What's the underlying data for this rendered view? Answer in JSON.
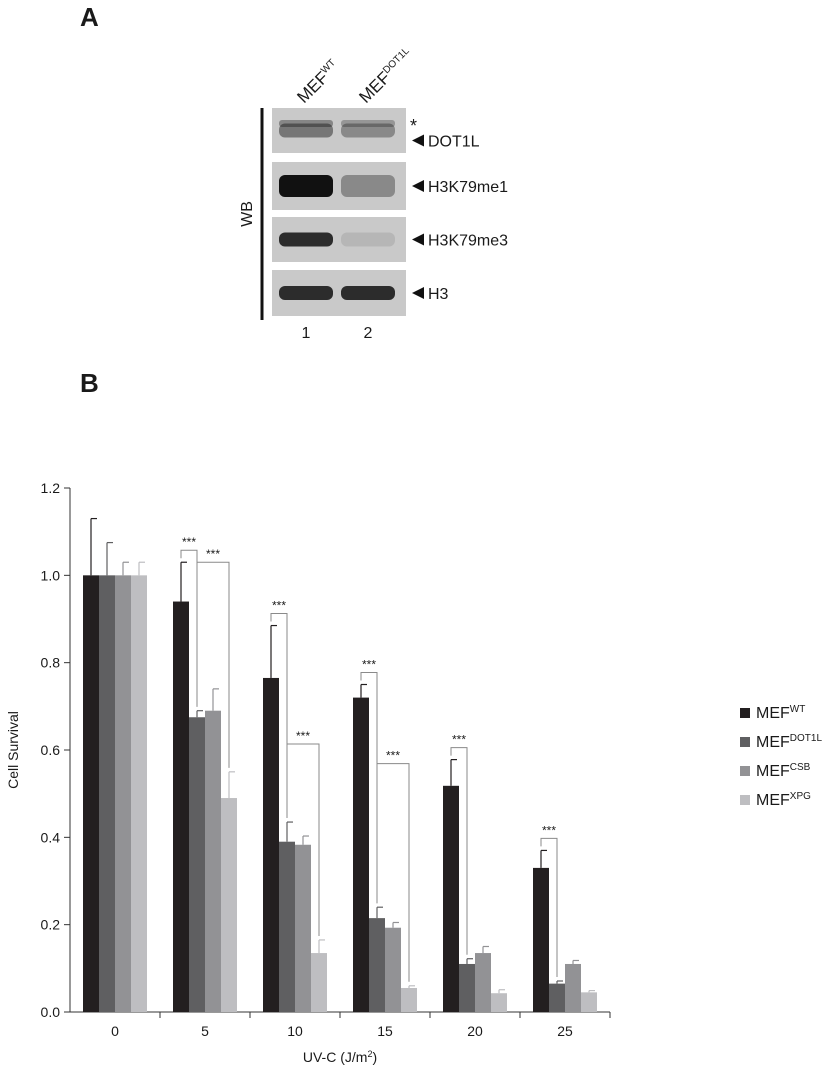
{
  "panel_a": {
    "label": "A",
    "lanes": [
      {
        "header_base": "MEF",
        "header_sup": "WT",
        "number": "1"
      },
      {
        "header_base": "MEF",
        "header_sup": "DOT1L",
        "number": "2"
      }
    ],
    "side_label": "WB",
    "asterisk": "*",
    "blots": [
      {
        "name": "DOT1L",
        "band_intensity": [
          0.45,
          0.35
        ]
      },
      {
        "name": "H3K79me1",
        "band_intensity": [
          1.0,
          0.35
        ]
      },
      {
        "name": "H3K79me3",
        "band_intensity": [
          0.85,
          0.1
        ]
      },
      {
        "name": "H3",
        "band_intensity": [
          0.85,
          0.85
        ]
      }
    ],
    "colors": {
      "blot_bg": "#c9c9c9",
      "band": "#111111"
    }
  },
  "panel_b": {
    "label": "B",
    "legend": [
      {
        "base": "MEF",
        "sup": "WT",
        "color": "#231f20"
      },
      {
        "base": "MEF",
        "sup": "DOT1L",
        "color": "#5f5f61"
      },
      {
        "base": "MEF",
        "sup": "CSB",
        "color": "#929295"
      },
      {
        "base": "MEF",
        "sup": "XPG",
        "color": "#bebec1"
      }
    ]
  },
  "chart_data": {
    "type": "bar",
    "xlabel_base": "UV-C (J/m",
    "xlabel_sup": "2",
    "xlabel_end": ")",
    "ylabel": "Cell Survival",
    "categories": [
      "0",
      "5",
      "10",
      "15",
      "20",
      "25"
    ],
    "ylim": [
      0,
      1.2
    ],
    "yticks": [
      "0.0",
      "0.2",
      "0.4",
      "0.6",
      "0.8",
      "1.0",
      "1.2"
    ],
    "ytick_values": [
      0,
      0.2,
      0.4,
      0.6,
      0.8,
      1.0,
      1.2
    ],
    "legend_position": "right",
    "series": [
      {
        "values": [
          1.0,
          0.94,
          0.765,
          0.72,
          0.518,
          0.33
        ],
        "errors": [
          0.13,
          0.09,
          0.12,
          0.03,
          0.06,
          0.04
        ]
      },
      {
        "values": [
          1.0,
          0.675,
          0.39,
          0.215,
          0.11,
          0.065
        ],
        "errors": [
          0.075,
          0.015,
          0.045,
          0.025,
          0.012,
          0.006
        ]
      },
      {
        "values": [
          1.0,
          0.69,
          0.383,
          0.193,
          0.135,
          0.11
        ],
        "errors": [
          0.03,
          0.05,
          0.02,
          0.012,
          0.015,
          0.008
        ]
      },
      {
        "values": [
          1.0,
          0.49,
          0.135,
          0.055,
          0.043,
          0.045
        ],
        "errors": [
          0.03,
          0.06,
          0.03,
          0.005,
          0.008,
          0.004
        ]
      }
    ],
    "significance": [
      {
        "category": "5",
        "from_series": 0,
        "to_series": 1,
        "text": "***"
      },
      {
        "category": "5",
        "from_series": 1,
        "to_series": 3,
        "text": "***"
      },
      {
        "category": "10",
        "from_series": 0,
        "to_series": 1,
        "text": "***"
      },
      {
        "category": "10",
        "from_series": 1,
        "to_series": 3,
        "text": "***"
      },
      {
        "category": "15",
        "from_series": 0,
        "to_series": 1,
        "text": "***"
      },
      {
        "category": "15",
        "from_series": 1,
        "to_series": 3,
        "text": "***"
      },
      {
        "category": "20",
        "from_series": 0,
        "to_series": 1,
        "text": "***"
      },
      {
        "category": "25",
        "from_series": 0,
        "to_series": 1,
        "text": "***"
      }
    ]
  }
}
